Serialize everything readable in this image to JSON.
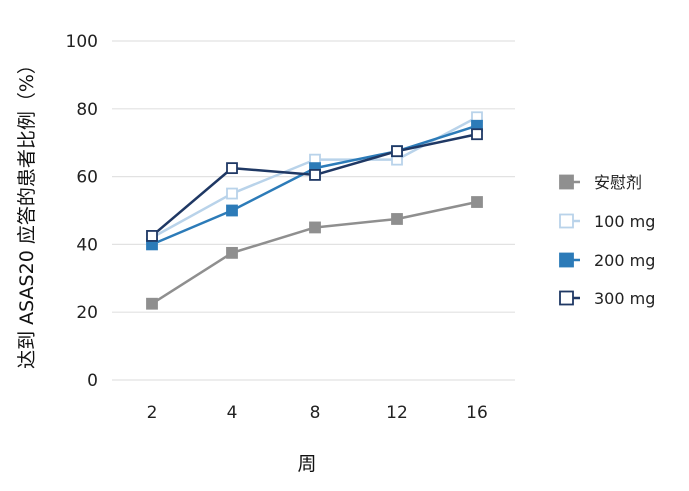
{
  "chart_data": {
    "type": "line",
    "title": "",
    "xlabel": "周",
    "ylabel": "达到 ASAS20 应答的患者比例（%）",
    "categories": [
      "2",
      "4",
      "8",
      "12",
      "16"
    ],
    "y_ticks": [
      "0",
      "20",
      "40",
      "60",
      "80",
      "100"
    ],
    "ylim": [
      0,
      100
    ],
    "grid": true,
    "legend_position": "right",
    "series": [
      {
        "name": "安慰剂",
        "color": "#8f8f8f",
        "marker": "filled-square",
        "values": [
          22.5,
          37.5,
          45,
          47.5,
          52.5
        ]
      },
      {
        "name": "100 mg",
        "color": "#b9d3ea",
        "marker": "open-square",
        "values": [
          42,
          55,
          65,
          65,
          77.5
        ]
      },
      {
        "name": "200 mg",
        "color": "#2c7bb8",
        "marker": "filled-square",
        "values": [
          40,
          50,
          62.5,
          67.5,
          75
        ]
      },
      {
        "name": "300 mg",
        "color": "#1f3864",
        "marker": "open-square",
        "values": [
          42.5,
          62.5,
          60.5,
          67.5,
          72.5
        ]
      }
    ]
  }
}
